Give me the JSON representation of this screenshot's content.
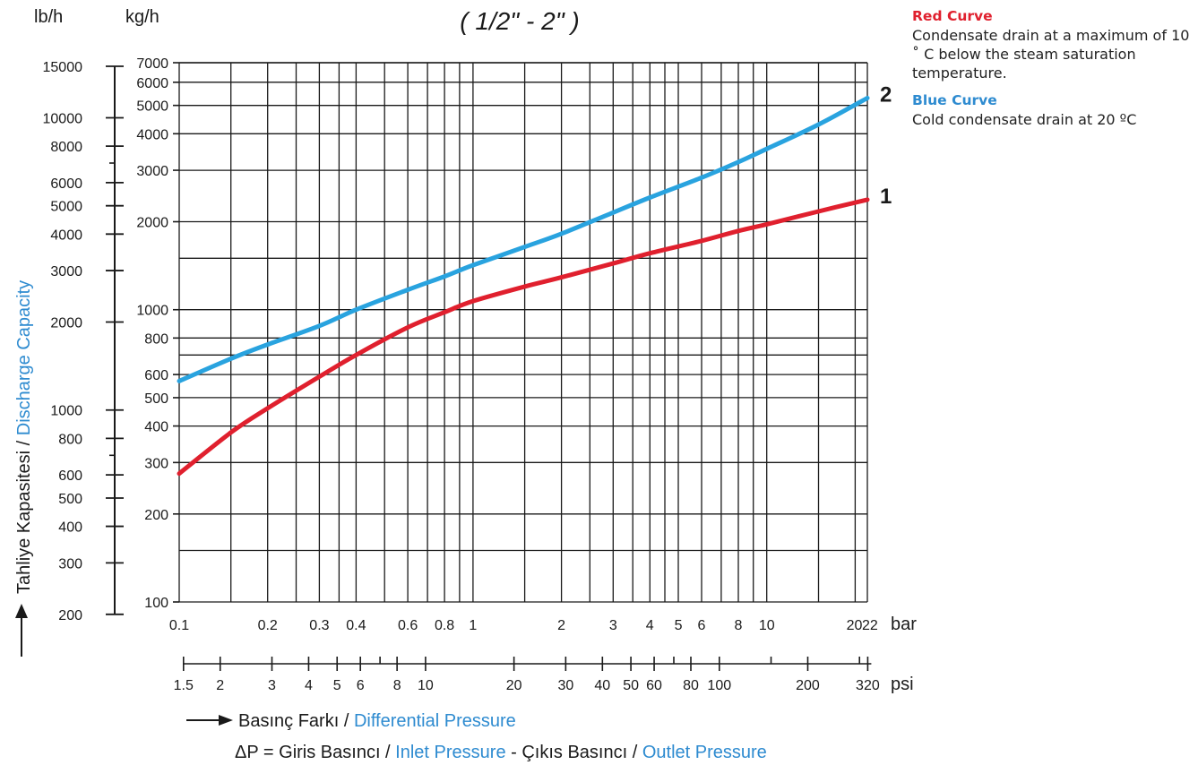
{
  "chart_data": {
    "type": "line",
    "title": "( 1/2\" - 2\" )",
    "x_scale": "log",
    "y_scale": "log",
    "grid": true,
    "x_range_bar": [
      0.1,
      22
    ],
    "y_range_kg_h": [
      100,
      7000
    ],
    "y_label_prefix": "Tahliye Kapasitesi / ",
    "y_label_suffix": "Discharge Capacity",
    "x_label_prefix": "Basınç Farkı / ",
    "x_label_suffix": "Differential Pressure",
    "formula": {
      "delta": "ΔP = ",
      "inlet_tr": "Giris Basıncı / ",
      "inlet_en": "Inlet Pressure",
      "minus": " - ",
      "outlet_tr": "Çıkıs Basıncı / ",
      "outlet_en": "Outlet Pressure"
    },
    "unit_lb": "lb/h",
    "unit_kg": "kg/h",
    "unit_bar": "bar",
    "unit_psi": "psi",
    "kg_ticks": [
      {
        "v": 100,
        "label": "100"
      },
      {
        "v": 200,
        "label": "200"
      },
      {
        "v": 300,
        "label": "300"
      },
      {
        "v": 400,
        "label": "400"
      },
      {
        "v": 500,
        "label": "500"
      },
      {
        "v": 600,
        "label": "600"
      },
      {
        "v": 800,
        "label": "800"
      },
      {
        "v": 1000,
        "label": "1000"
      },
      {
        "v": 2000,
        "label": "2000"
      },
      {
        "v": 3000,
        "label": "3000"
      },
      {
        "v": 4000,
        "label": "4000"
      },
      {
        "v": 5000,
        "label": "5000"
      },
      {
        "v": 6000,
        "label": "6000"
      },
      {
        "v": 7000,
        "label": "7000"
      }
    ],
    "kg_grid_extra": [
      150,
      700,
      1500
    ],
    "lb_ticks": [
      {
        "v": 200,
        "label": "200"
      },
      {
        "v": 300,
        "label": "300"
      },
      {
        "v": 400,
        "label": "400"
      },
      {
        "v": 500,
        "label": "500"
      },
      {
        "v": 600,
        "label": "600"
      },
      {
        "v": 800,
        "label": "800"
      },
      {
        "v": 1000,
        "label": "1000"
      },
      {
        "v": 2000,
        "label": "2000"
      },
      {
        "v": 3000,
        "label": "3000"
      },
      {
        "v": 4000,
        "label": "4000"
      },
      {
        "v": 5000,
        "label": "5000"
      },
      {
        "v": 6000,
        "label": "6000"
      },
      {
        "v": 8000,
        "label": "8000"
      },
      {
        "v": 10000,
        "label": "10000"
      },
      {
        "v": 15000,
        "label": "15000"
      }
    ],
    "lb_minor": [
      700,
      7000
    ],
    "bar_ticks": [
      {
        "v": 0.1,
        "label": "0.1"
      },
      {
        "v": 0.2,
        "label": "0.2"
      },
      {
        "v": 0.3,
        "label": "0.3"
      },
      {
        "v": 0.4,
        "label": "0.4"
      },
      {
        "v": 0.6,
        "label": "0.6"
      },
      {
        "v": 0.8,
        "label": "0.8"
      },
      {
        "v": 1,
        "label": "1"
      },
      {
        "v": 2,
        "label": "2"
      },
      {
        "v": 3,
        "label": "3"
      },
      {
        "v": 4,
        "label": "4"
      },
      {
        "v": 5,
        "label": "5"
      },
      {
        "v": 6,
        "label": "6"
      },
      {
        "v": 8,
        "label": "8"
      },
      {
        "v": 10,
        "label": "10"
      },
      {
        "v": 20,
        "label": "20"
      },
      {
        "v": 22,
        "label": "22"
      }
    ],
    "bar_grid": [
      0.1,
      0.15,
      0.2,
      0.25,
      0.3,
      0.35,
      0.4,
      0.5,
      0.6,
      0.7,
      0.8,
      0.9,
      1,
      1.5,
      2,
      2.5,
      3,
      3.5,
      4,
      4.5,
      5,
      6,
      7,
      8,
      9,
      10,
      15,
      20,
      22
    ],
    "psi_ticks": [
      {
        "v": 1.5,
        "label": "1.5"
      },
      {
        "v": 2,
        "label": "2"
      },
      {
        "v": 3,
        "label": "3"
      },
      {
        "v": 4,
        "label": "4"
      },
      {
        "v": 5,
        "label": "5"
      },
      {
        "v": 6,
        "label": "6"
      },
      {
        "v": 8,
        "label": "8"
      },
      {
        "v": 10,
        "label": "10"
      },
      {
        "v": 20,
        "label": "20"
      },
      {
        "v": 30,
        "label": "30"
      },
      {
        "v": 40,
        "label": "40"
      },
      {
        "v": 50,
        "label": "50"
      },
      {
        "v": 60,
        "label": "60"
      },
      {
        "v": 80,
        "label": "80"
      },
      {
        "v": 100,
        "label": "100"
      },
      {
        "v": 200,
        "label": "200"
      },
      {
        "v": 320,
        "label": "320"
      }
    ],
    "psi_minor": [
      7,
      70,
      150,
      300
    ],
    "series": [
      {
        "name": "1",
        "color": "#e0202e",
        "points": [
          [
            0.1,
            275
          ],
          [
            0.15,
            380
          ],
          [
            0.2,
            460
          ],
          [
            0.3,
            590
          ],
          [
            0.4,
            700
          ],
          [
            0.6,
            870
          ],
          [
            0.8,
            980
          ],
          [
            1,
            1070
          ],
          [
            1.5,
            1200
          ],
          [
            2,
            1290
          ],
          [
            3,
            1440
          ],
          [
            4,
            1560
          ],
          [
            6,
            1720
          ],
          [
            8,
            1860
          ],
          [
            10,
            1960
          ],
          [
            15,
            2170
          ],
          [
            22,
            2380
          ]
        ]
      },
      {
        "name": "2",
        "color": "#29a3df",
        "points": [
          [
            0.1,
            570
          ],
          [
            0.15,
            680
          ],
          [
            0.2,
            760
          ],
          [
            0.3,
            880
          ],
          [
            0.4,
            1000
          ],
          [
            0.6,
            1170
          ],
          [
            0.8,
            1300
          ],
          [
            1,
            1420
          ],
          [
            1.5,
            1640
          ],
          [
            2,
            1820
          ],
          [
            3,
            2150
          ],
          [
            4,
            2420
          ],
          [
            6,
            2830
          ],
          [
            8,
            3200
          ],
          [
            10,
            3550
          ],
          [
            15,
            4300
          ],
          [
            22,
            5300
          ]
        ]
      }
    ]
  },
  "legend": {
    "red_title": "Red Curve",
    "red_text": "Condensate drain at a maximum of 10 ˚ C below the steam saturation temperature.",
    "blue_title": "Blue Curve",
    "blue_text": "Cold condensate drain at 20 ºC"
  },
  "colors": {
    "red": "#e0202e",
    "blue_curve": "#29a3df",
    "blue_text": "#2e8bd0",
    "grid": "#1a1a1a"
  }
}
